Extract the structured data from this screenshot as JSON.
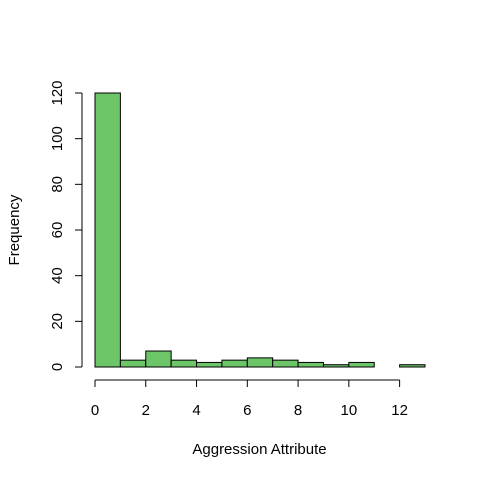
{
  "chart_data": {
    "type": "bar",
    "xlabel": "Aggression Attribute",
    "ylabel": "Frequency",
    "bins": [
      {
        "x0": 0,
        "x1": 1,
        "count": 120
      },
      {
        "x0": 1,
        "x1": 2,
        "count": 3
      },
      {
        "x0": 2,
        "x1": 3,
        "count": 7
      },
      {
        "x0": 3,
        "x1": 4,
        "count": 3
      },
      {
        "x0": 4,
        "x1": 5,
        "count": 2
      },
      {
        "x0": 5,
        "x1": 6,
        "count": 3
      },
      {
        "x0": 6,
        "x1": 7,
        "count": 4
      },
      {
        "x0": 7,
        "x1": 8,
        "count": 3
      },
      {
        "x0": 8,
        "x1": 9,
        "count": 2
      },
      {
        "x0": 9,
        "x1": 10,
        "count": 1
      },
      {
        "x0": 10,
        "x1": 11,
        "count": 2
      },
      {
        "x0": 11,
        "x1": 12,
        "count": 0
      },
      {
        "x0": 12,
        "x1": 13,
        "count": 1
      }
    ],
    "xlim": [
      0,
      13
    ],
    "ylim": [
      0,
      120
    ],
    "xticks": [
      0,
      2,
      4,
      6,
      8,
      10,
      12
    ],
    "yticks": [
      0,
      20,
      40,
      60,
      80,
      100,
      120
    ],
    "bar_color": "#6CC667",
    "grid": false,
    "legend": "none"
  }
}
